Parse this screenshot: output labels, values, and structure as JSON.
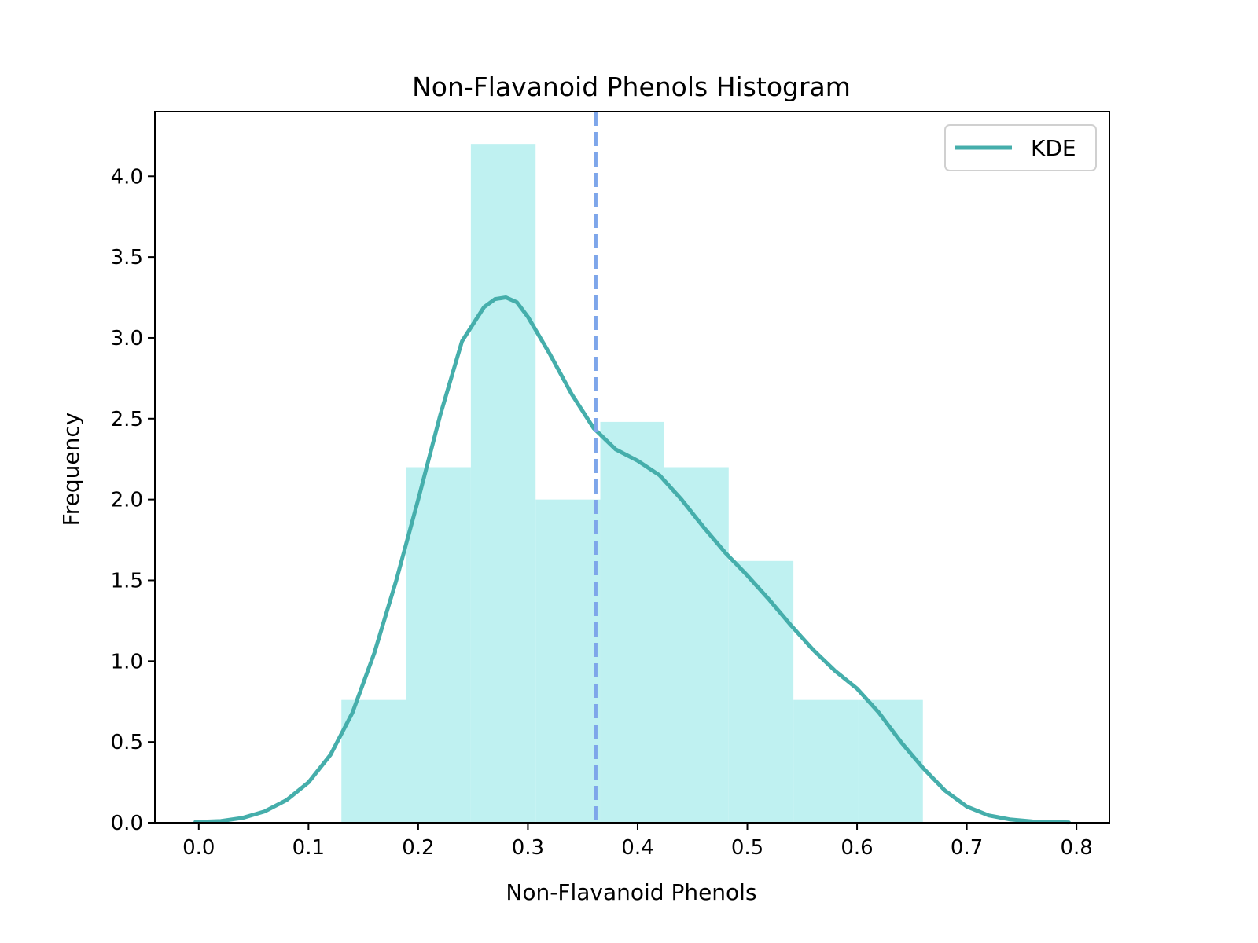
{
  "chart_data": {
    "type": "bar",
    "title": "Non-Flavanoid Phenols Histogram",
    "xlabel": "Non-Flavanoid Phenols",
    "ylabel": "Frequency",
    "xlim": [
      -0.04,
      0.83
    ],
    "ylim": [
      0,
      4.4
    ],
    "x_ticks": [
      0.0,
      0.1,
      0.2,
      0.3,
      0.4,
      0.5,
      0.6,
      0.7,
      0.8
    ],
    "x_tick_labels": [
      "0.0",
      "0.1",
      "0.2",
      "0.3",
      "0.4",
      "0.5",
      "0.6",
      "0.7",
      "0.8"
    ],
    "y_ticks": [
      0.0,
      0.5,
      1.0,
      1.5,
      2.0,
      2.5,
      3.0,
      3.5,
      4.0
    ],
    "y_tick_labels": [
      "0.0",
      "0.5",
      "1.0",
      "1.5",
      "2.0",
      "2.5",
      "3.0",
      "3.5",
      "4.0"
    ],
    "grid": false,
    "legend": {
      "placement": "top-right",
      "entries": [
        "KDE"
      ]
    },
    "bins": [
      {
        "x0": 0.13,
        "x1": 0.189,
        "value": 0.76
      },
      {
        "x0": 0.189,
        "x1": 0.248,
        "value": 2.2
      },
      {
        "x0": 0.248,
        "x1": 0.307,
        "value": 4.2
      },
      {
        "x0": 0.307,
        "x1": 0.366,
        "value": 2.0
      },
      {
        "x0": 0.366,
        "x1": 0.424,
        "value": 2.48
      },
      {
        "x0": 0.424,
        "x1": 0.483,
        "value": 2.2
      },
      {
        "x0": 0.483,
        "x1": 0.542,
        "value": 1.62
      },
      {
        "x0": 0.542,
        "x1": 0.601,
        "value": 0.76
      },
      {
        "x0": 0.601,
        "x1": 0.66,
        "value": 0.76
      }
    ],
    "kde": {
      "name": "KDE",
      "x": [
        -0.003,
        0.02,
        0.04,
        0.06,
        0.08,
        0.1,
        0.12,
        0.14,
        0.16,
        0.18,
        0.2,
        0.22,
        0.24,
        0.26,
        0.27,
        0.28,
        0.29,
        0.3,
        0.32,
        0.34,
        0.36,
        0.38,
        0.4,
        0.42,
        0.44,
        0.46,
        0.48,
        0.5,
        0.52,
        0.54,
        0.56,
        0.58,
        0.6,
        0.62,
        0.64,
        0.66,
        0.68,
        0.7,
        0.72,
        0.74,
        0.76,
        0.793
      ],
      "y": [
        0.005,
        0.01,
        0.03,
        0.07,
        0.14,
        0.25,
        0.42,
        0.68,
        1.05,
        1.5,
        2.0,
        2.52,
        2.98,
        3.19,
        3.24,
        3.25,
        3.22,
        3.13,
        2.9,
        2.65,
        2.44,
        2.31,
        2.24,
        2.15,
        2.0,
        1.83,
        1.67,
        1.53,
        1.38,
        1.22,
        1.07,
        0.94,
        0.83,
        0.68,
        0.5,
        0.34,
        0.2,
        0.1,
        0.045,
        0.02,
        0.008,
        0.002
      ]
    },
    "mean_line": {
      "x": 0.362
    },
    "colors": {
      "bars": "#bff1f1",
      "kde": "#45aeab",
      "mean_line": "#7ea6ea",
      "axes": "#000000"
    }
  }
}
